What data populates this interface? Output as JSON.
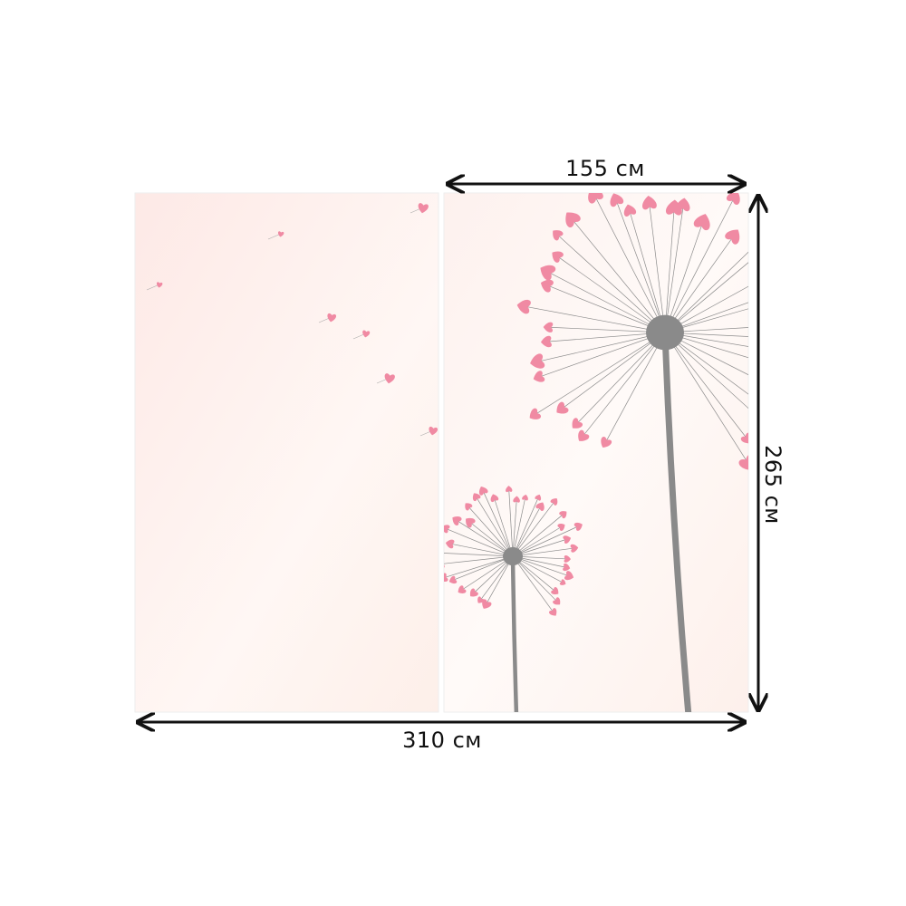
{
  "dimensions": {
    "panel_width": "155 см",
    "total_width": "310 см",
    "height": "265 см"
  },
  "panels": 2,
  "colors": {
    "heart": "#f08aa3",
    "stem": "#8a8a8a",
    "background_left": "#fdeee9",
    "background_right": "#fdf6f3",
    "arrow": "#111111"
  }
}
